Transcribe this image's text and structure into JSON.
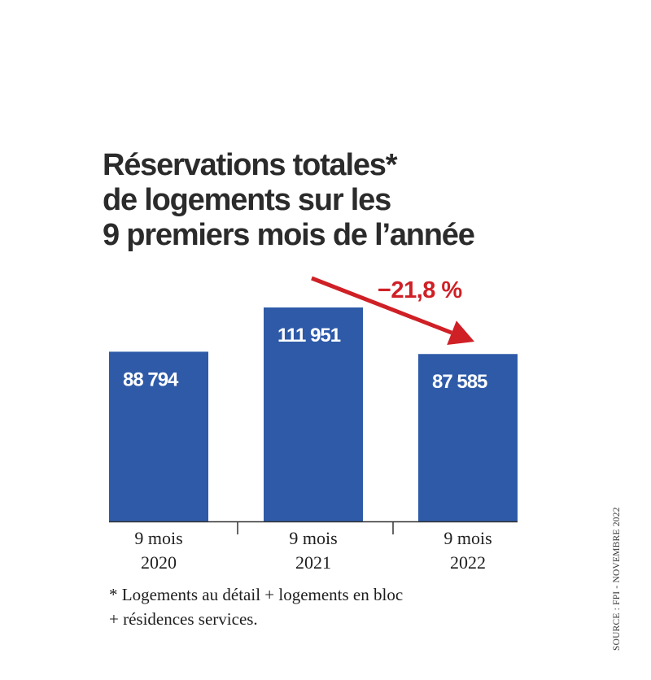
{
  "title_lines": [
    "Réservations totales*",
    "de logements sur les",
    "9 premiers mois de l’année"
  ],
  "footnote_lines": [
    "* Logements au détail + logements en bloc",
    "+ résidences services."
  ],
  "source": "SOURCE : FPI - NOVEMBRE 2022",
  "colors": {
    "bar": "#2e5aa8",
    "accent": "#cf2026",
    "text": "#2b2b2b"
  },
  "chart_data": {
    "type": "bar",
    "categories": [
      [
        "9 mois",
        "2020"
      ],
      [
        "9 mois",
        "2021"
      ],
      [
        "9 mois",
        "2022"
      ]
    ],
    "values": [
      88794,
      111951,
      87585
    ],
    "value_labels": [
      "88 794",
      "111 951",
      "87 585"
    ],
    "annotation": {
      "text": "−21,8 %",
      "from": "2021",
      "to": "2022"
    }
  }
}
